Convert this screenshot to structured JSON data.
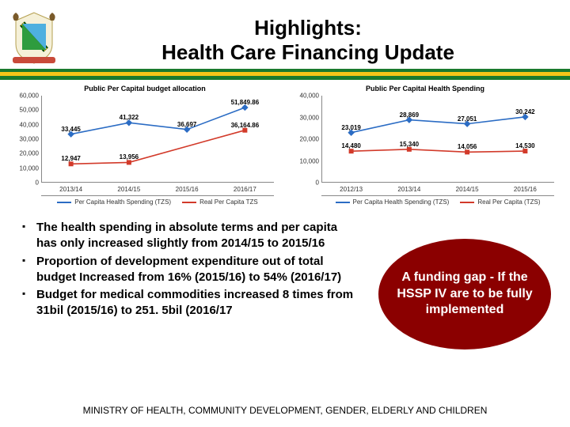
{
  "header": {
    "title_line1": "Highlights:",
    "title_line2": "Health Care Financing Update"
  },
  "stripe_colors": {
    "top": "#1a7a2e",
    "mid": "#f5c518",
    "bot": "#1a7a2e"
  },
  "chart_left": {
    "type": "line",
    "title": "Public Per Capital budget allocation",
    "ylim": [
      0,
      60000
    ],
    "ytick_step": 10000,
    "yticks": [
      "0",
      "10,000",
      "20,000",
      "30,000",
      "40,000",
      "50,000",
      "60,000"
    ],
    "categories": [
      "2013/14",
      "2014/15",
      "2015/16",
      "2016/17"
    ],
    "series": [
      {
        "name": "Per Capita Health Spending (TZS)",
        "color": "#2b6cc4",
        "marker": "diamond",
        "values": [
          33445,
          41322,
          36697,
          51849.86
        ],
        "labels": [
          "33,445",
          "41,322",
          "36,697",
          "51,849.86"
        ]
      },
      {
        "name": "Real Per Capita TZS",
        "color": "#d23a2a",
        "marker": "square",
        "values": [
          12947,
          13956,
          null,
          36164.86
        ],
        "labels": [
          "12,947",
          "13,956",
          "",
          "36,164.86"
        ]
      }
    ],
    "grid_color": "#ffffff",
    "background_color": "#ffffff",
    "label_fontsize": 8,
    "title_fontsize": 9
  },
  "chart_right": {
    "type": "line",
    "title": "Public Per Capital Health Spending",
    "ylim": [
      0,
      40000
    ],
    "ytick_step": 10000,
    "yticks": [
      "0",
      "10,000",
      "20,000",
      "30,000",
      "40,000"
    ],
    "categories": [
      "2012/13",
      "2013/14",
      "2014/15",
      "2015/16"
    ],
    "series": [
      {
        "name": "Per Capita Health Spending (TZS)",
        "color": "#2b6cc4",
        "marker": "diamond",
        "values": [
          23019,
          28869,
          27051,
          30242
        ],
        "labels": [
          "23,019",
          "28,869",
          "27,051",
          "30,242"
        ]
      },
      {
        "name": "Real Per Capita (TZS)",
        "color": "#d23a2a",
        "marker": "square",
        "values": [
          14480,
          15340,
          14056,
          14530
        ],
        "labels": [
          "14,480",
          "15,340",
          "14,056",
          "14,530"
        ]
      }
    ],
    "grid_color": "#ffffff",
    "background_color": "#ffffff",
    "label_fontsize": 8,
    "title_fontsize": 9
  },
  "bullets": [
    "The health spending in absolute terms and per capita has only increased slightly from 2014/15 to 2015/16",
    "Proportion of development expenditure out of total budget Increased from 16% (2015/16) to 54% (2016/17)",
    "Budget for medical commodities increased 8 times from 31bil (2015/16) to 251. 5bil (2016/17"
  ],
  "callout": {
    "text": "A funding gap - If the HSSP IV are to be fully implemented",
    "bg_color": "#8b0000",
    "text_color": "#ffffff",
    "fontsize": 16
  },
  "footer": "MINISTRY OF HEALTH, COMMUNITY DEVELOPMENT, GENDER, ELDERLY AND CHILDREN"
}
